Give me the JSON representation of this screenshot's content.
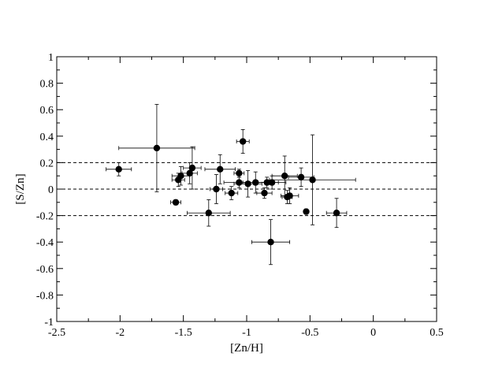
{
  "chart_data": {
    "type": "scatter",
    "title": "",
    "xlabel": "[Zn/H]",
    "ylabel": "[S/Zn]",
    "xlim": [
      -2.5,
      0.5
    ],
    "ylim": [
      -1,
      1
    ],
    "x_ticks": [
      "-2.5",
      "-2",
      "-1.5",
      "-1",
      "-0.5",
      "0",
      "0.5"
    ],
    "y_ticks": [
      "-1",
      "-0.8",
      "-0.6",
      "-0.4",
      "-0.2",
      "0",
      "0.2",
      "0.4",
      "0.6",
      "0.8",
      "1"
    ],
    "reference_lines": [
      0.2,
      0,
      -0.2
    ],
    "grid": false,
    "legend": "none",
    "marker_color": "#000000",
    "series": [
      {
        "points": [
          {
            "x": -2.01,
            "y": 0.15,
            "xerr": 0.1,
            "yerr": 0.05
          },
          {
            "x": -1.71,
            "y": 0.31,
            "xerr": 0.3,
            "yerr": 0.33
          },
          {
            "x": -1.56,
            "y": -0.1,
            "xerr": 0.04,
            "yerr": 0.02
          },
          {
            "x": -1.54,
            "y": 0.07,
            "xerr": 0.05,
            "yerr": 0.05
          },
          {
            "x": -1.52,
            "y": 0.1,
            "xerr": 0.07,
            "yerr": 0.07
          },
          {
            "x": -1.45,
            "y": 0.12,
            "xerr": 0.06,
            "yerr": 0.08
          },
          {
            "x": -1.43,
            "y": 0.16,
            "xerr": 0.07,
            "yerr": 0.16
          },
          {
            "x": -1.3,
            "y": -0.18,
            "xerr": 0.17,
            "yerr": 0.1
          },
          {
            "x": -1.24,
            "y": 0.0,
            "xerr": 0.05,
            "yerr": 0.11
          },
          {
            "x": -1.21,
            "y": 0.15,
            "xerr": 0.12,
            "yerr": 0.11
          },
          {
            "x": -1.12,
            "y": -0.03,
            "xerr": 0.05,
            "yerr": 0.05
          },
          {
            "x": -1.06,
            "y": 0.12,
            "xerr": 0.04,
            "yerr": 0.03
          },
          {
            "x": -1.06,
            "y": 0.05,
            "xerr": 0.12,
            "yerr": 0.04
          },
          {
            "x": -1.03,
            "y": 0.36,
            "xerr": 0.05,
            "yerr": 0.09
          },
          {
            "x": -0.99,
            "y": 0.04,
            "xerr": 0.11,
            "yerr": 0.1
          },
          {
            "x": -0.93,
            "y": 0.05,
            "xerr": 0.1,
            "yerr": 0.08
          },
          {
            "x": -0.86,
            "y": -0.03,
            "xerr": 0.06,
            "yerr": 0.04
          },
          {
            "x": -0.84,
            "y": 0.05,
            "xerr": 0.09,
            "yerr": 0.04
          },
          {
            "x": -0.81,
            "y": -0.4,
            "xerr": 0.15,
            "yerr": 0.17
          },
          {
            "x": -0.8,
            "y": 0.05,
            "xerr": 0.11,
            "yerr": 0.05
          },
          {
            "x": -0.7,
            "y": 0.1,
            "xerr": 0.1,
            "yerr": 0.15
          },
          {
            "x": -0.68,
            "y": -0.06,
            "xerr": 0.04,
            "yerr": 0.05
          },
          {
            "x": -0.66,
            "y": -0.05,
            "xerr": 0.07,
            "yerr": 0.06
          },
          {
            "x": -0.57,
            "y": 0.09,
            "xerr": 0.1,
            "yerr": 0.07
          },
          {
            "x": -0.53,
            "y": -0.17,
            "xerr": 0.02,
            "yerr": 0.02
          },
          {
            "x": -0.48,
            "y": 0.07,
            "xerr": 0.34,
            "yerr": 0.34
          },
          {
            "x": -0.29,
            "y": -0.18,
            "xerr": 0.08,
            "yerr": 0.11
          }
        ]
      }
    ]
  }
}
